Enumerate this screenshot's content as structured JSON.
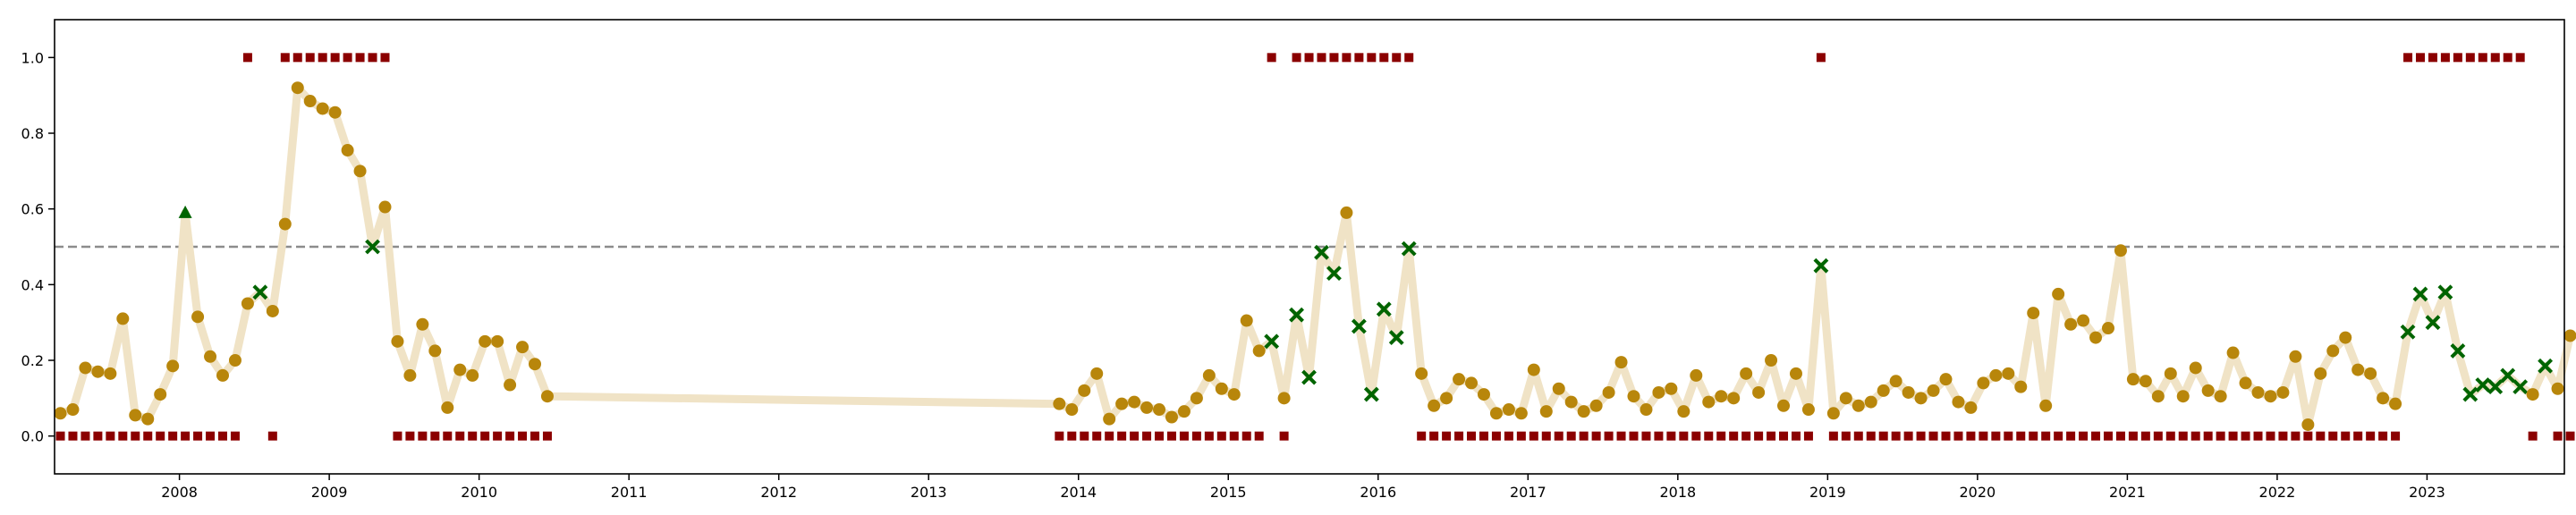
{
  "chart_data": {
    "type": "line",
    "title": "",
    "xlabel": "",
    "ylabel": "",
    "xlim": [
      "2007-03-01",
      "2023-12-01"
    ],
    "ylim": [
      -0.1,
      1.1
    ],
    "x_ticks": [
      "2008",
      "2009",
      "2010",
      "2011",
      "2012",
      "2013",
      "2014",
      "2015",
      "2016",
      "2017",
      "2018",
      "2019",
      "2020",
      "2021",
      "2022",
      "2023"
    ],
    "y_ticks": [
      "0.0",
      "0.2",
      "0.4",
      "0.6",
      "0.8",
      "1.0"
    ],
    "threshold": 0.5,
    "grid": false,
    "legend": "none",
    "colors": {
      "line": "#f0e3c6",
      "point": "#b8860b",
      "cross": "#006400",
      "triangle": "#006400",
      "square": "#8b0000",
      "threshold": "#8c8c8c"
    },
    "series": [
      {
        "x": [
          "2007-03",
          "2007-04",
          "2007-05",
          "2007-06",
          "2007-07",
          "2007-08",
          "2007-09",
          "2007-10",
          "2007-11",
          "2007-12",
          "2008-01",
          "2008-02",
          "2008-03",
          "2008-04",
          "2008-05",
          "2008-06",
          "2008-07",
          "2008-08",
          "2008-09",
          "2008-10",
          "2008-11",
          "2008-12",
          "2009-01",
          "2009-02",
          "2009-03",
          "2009-04",
          "2009-05",
          "2009-06",
          "2009-07",
          "2009-08",
          "2009-09",
          "2009-10",
          "2009-11",
          "2009-12",
          "2010-01",
          "2010-02",
          "2010-03",
          "2010-04",
          "2010-05",
          "2010-06",
          "2013-11",
          "2013-12",
          "2014-01",
          "2014-02",
          "2014-03",
          "2014-04",
          "2014-05",
          "2014-06",
          "2014-07",
          "2014-08",
          "2014-09",
          "2014-10",
          "2014-11",
          "2014-12",
          "2015-01",
          "2015-02",
          "2015-03",
          "2015-04",
          "2015-05",
          "2015-06",
          "2015-07",
          "2015-08",
          "2015-09",
          "2015-10",
          "2015-11",
          "2015-12",
          "2016-01",
          "2016-02",
          "2016-03",
          "2016-04",
          "2016-05",
          "2016-06",
          "2016-07",
          "2016-08",
          "2016-09",
          "2016-10",
          "2016-11",
          "2016-12",
          "2017-01",
          "2017-02",
          "2017-03",
          "2017-04",
          "2017-05",
          "2017-06",
          "2017-07",
          "2017-08",
          "2017-09",
          "2017-10",
          "2017-11",
          "2017-12",
          "2018-01",
          "2018-02",
          "2018-03",
          "2018-04",
          "2018-05",
          "2018-06",
          "2018-07",
          "2018-08",
          "2018-09",
          "2018-10",
          "2018-11",
          "2018-12",
          "2019-01",
          "2019-02",
          "2019-03",
          "2019-04",
          "2019-05",
          "2019-06",
          "2019-07",
          "2019-08",
          "2019-09",
          "2019-10",
          "2019-11",
          "2019-12",
          "2020-01",
          "2020-02",
          "2020-03",
          "2020-04",
          "2020-05",
          "2020-06",
          "2020-07",
          "2020-08",
          "2020-09",
          "2020-10",
          "2020-11",
          "2020-12",
          "2021-01",
          "2021-02",
          "2021-03",
          "2021-04",
          "2021-05",
          "2021-06",
          "2021-07",
          "2021-08",
          "2021-09",
          "2021-10",
          "2021-11",
          "2021-12",
          "2022-01",
          "2022-02",
          "2022-03",
          "2022-04",
          "2022-05",
          "2022-06",
          "2022-07",
          "2022-08",
          "2022-09",
          "2022-10",
          "2022-11",
          "2022-12",
          "2023-01",
          "2023-02",
          "2023-03",
          "2023-04",
          "2023-05",
          "2023-06",
          "2023-07",
          "2023-08",
          "2023-09",
          "2023-10",
          "2023-11",
          "2023-12"
        ],
        "y": [
          0.06,
          0.07,
          0.18,
          0.17,
          0.165,
          0.31,
          0.055,
          0.045,
          0.11,
          0.185,
          0.59,
          0.315,
          0.21,
          0.16,
          0.2,
          0.35,
          0.38,
          0.33,
          0.56,
          0.92,
          0.885,
          0.865,
          0.855,
          0.755,
          0.7,
          0.5,
          0.605,
          0.25,
          0.16,
          0.295,
          0.225,
          0.075,
          0.175,
          0.16,
          0.25,
          0.25,
          0.135,
          0.235,
          0.19,
          0.105,
          0.085,
          0.07,
          0.12,
          0.165,
          0.045,
          0.085,
          0.09,
          0.075,
          0.07,
          0.05,
          0.065,
          0.1,
          0.16,
          0.125,
          0.11,
          0.305,
          0.225,
          0.25,
          0.1,
          0.32,
          0.155,
          0.485,
          0.43,
          0.59,
          0.29,
          0.11,
          0.335,
          0.26,
          0.495,
          0.165,
          0.08,
          0.1,
          0.15,
          0.14,
          0.11,
          0.06,
          0.07,
          0.06,
          0.175,
          0.065,
          0.125,
          0.09,
          0.065,
          0.08,
          0.115,
          0.195,
          0.105,
          0.07,
          0.115,
          0.125,
          0.065,
          0.16,
          0.09,
          0.105,
          0.1,
          0.165,
          0.115,
          0.2,
          0.08,
          0.165,
          0.07,
          0.45,
          0.06,
          0.1,
          0.08,
          0.09,
          0.12,
          0.145,
          0.115,
          0.1,
          0.12,
          0.15,
          0.09,
          0.075,
          0.14,
          0.16,
          0.165,
          0.13,
          0.325,
          0.08,
          0.375,
          0.295,
          0.305,
          0.26,
          0.285,
          0.49,
          0.15,
          0.145,
          0.105,
          0.165,
          0.105,
          0.18,
          0.12,
          0.105,
          0.22,
          0.14,
          0.115,
          0.105,
          0.115,
          0.21,
          0.03,
          0.165,
          0.225,
          0.26,
          0.175,
          0.165,
          0.1,
          0.085,
          0.275,
          0.375,
          0.3,
          0.38,
          0.225,
          0.11,
          0.135,
          0.13,
          0.16,
          0.13,
          0.11,
          0.185,
          0.125,
          0.265
        ],
        "marker": [
          "o",
          "o",
          "o",
          "o",
          "o",
          "o",
          "o",
          "o",
          "o",
          "o",
          "^",
          "o",
          "o",
          "o",
          "o",
          "o",
          "x",
          "o",
          "o",
          "o",
          "o",
          "o",
          "o",
          "o",
          "o",
          "x",
          "o",
          "o",
          "o",
          "o",
          "o",
          "o",
          "o",
          "o",
          "o",
          "o",
          "o",
          "o",
          "o",
          "o",
          "o",
          "o",
          "o",
          "o",
          "o",
          "o",
          "o",
          "o",
          "o",
          "o",
          "o",
          "o",
          "o",
          "o",
          "o",
          "o",
          "o",
          "x",
          "o",
          "x",
          "x",
          "x",
          "x",
          "o",
          "x",
          "x",
          "x",
          "x",
          "x",
          "o",
          "o",
          "o",
          "o",
          "o",
          "o",
          "o",
          "o",
          "o",
          "o",
          "o",
          "o",
          "o",
          "o",
          "o",
          "o",
          "o",
          "o",
          "o",
          "o",
          "o",
          "o",
          "o",
          "o",
          "o",
          "o",
          "o",
          "o",
          "o",
          "o",
          "o",
          "o",
          "x",
          "o",
          "o",
          "o",
          "o",
          "o",
          "o",
          "o",
          "o",
          "o",
          "o",
          "o",
          "o",
          "o",
          "o",
          "o",
          "o",
          "o",
          "o",
          "o",
          "o",
          "o",
          "o",
          "o",
          "o",
          "o",
          "o",
          "o",
          "o",
          "o",
          "o",
          "o",
          "o",
          "o",
          "o",
          "o",
          "o",
          "o",
          "o",
          "o",
          "o",
          "o",
          "o",
          "o",
          "o",
          "o",
          "o",
          "x",
          "x",
          "x",
          "x",
          "x",
          "x",
          "x",
          "x",
          "x",
          "x",
          "o",
          "x",
          "o",
          "o"
        ],
        "flag": [
          0,
          0,
          0,
          0,
          0,
          0,
          0,
          0,
          0,
          0,
          0,
          0,
          0,
          0,
          0,
          1,
          null,
          0,
          1,
          1,
          1,
          1,
          1,
          1,
          1,
          1,
          1,
          0,
          0,
          0,
          0,
          0,
          0,
          0,
          0,
          0,
          0,
          0,
          0,
          0,
          0,
          0,
          0,
          0,
          0,
          0,
          0,
          0,
          0,
          0,
          0,
          0,
          0,
          0,
          0,
          0,
          0,
          1,
          0,
          1,
          1,
          1,
          1,
          1,
          1,
          1,
          1,
          1,
          1,
          0,
          0,
          0,
          0,
          0,
          0,
          0,
          0,
          0,
          0,
          0,
          0,
          0,
          0,
          0,
          0,
          0,
          0,
          0,
          0,
          0,
          0,
          0,
          0,
          0,
          0,
          0,
          0,
          0,
          0,
          0,
          0,
          1,
          0,
          0,
          0,
          0,
          0,
          0,
          0,
          0,
          0,
          0,
          0,
          0,
          0,
          0,
          0,
          0,
          0,
          0,
          0,
          0,
          0,
          0,
          0,
          0,
          0,
          0,
          0,
          0,
          0,
          0,
          0,
          0,
          0,
          0,
          0,
          0,
          0,
          0,
          0,
          0,
          0,
          0,
          0,
          0,
          0,
          0,
          1,
          1,
          1,
          1,
          1,
          1,
          1,
          1,
          1,
          1,
          0,
          null,
          0,
          0
        ]
      }
    ]
  }
}
